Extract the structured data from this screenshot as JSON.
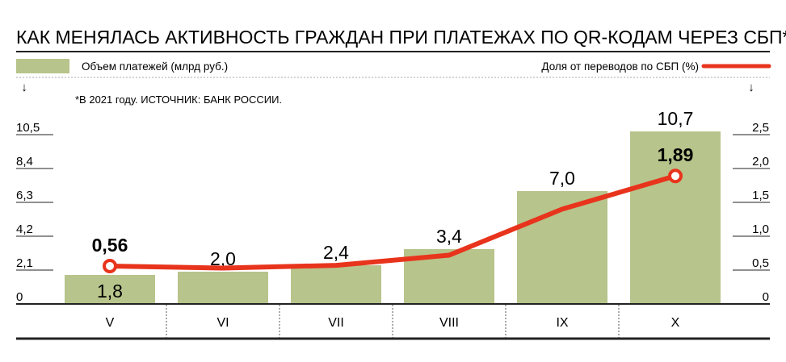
{
  "chart_data": {
    "type": "bar+line",
    "title": "КАК МЕНЯЛАСЬ АКТИВНОСТЬ ГРАЖДАН ПРИ ПЛАТЕЖАХ ПО QR-КОДАМ ЧЕРЕЗ СБП*",
    "note": "*В 2021 году.  ИСТОЧНИК: БАНК РОССИИ.",
    "legend_placement": "top",
    "categories": [
      "V",
      "VI",
      "VII",
      "VIII",
      "IX",
      "X"
    ],
    "bars": {
      "name": "Объем платежей (млрд руб.)",
      "color": "#b7c48b",
      "values": [
        1.8,
        2.0,
        2.4,
        3.4,
        7.0,
        10.7
      ],
      "labels": [
        "1,8",
        "2,0",
        "2,4",
        "3,4",
        "7,0",
        "10,7"
      ],
      "axis": "left"
    },
    "line": {
      "name": "Доля от переводов по СБП (%)",
      "color": "#e8341c",
      "values": [
        0.56,
        0.53,
        0.57,
        0.72,
        1.4,
        1.89
      ],
      "labels": [
        "0,56",
        "",
        "",
        "",
        "",
        "1,89"
      ],
      "axis": "right"
    },
    "left_axis": {
      "range": [
        0,
        12.6
      ],
      "ticks": [
        0,
        2.1,
        4.2,
        6.3,
        8.4,
        10.5
      ],
      "tick_labels": [
        "0",
        "2,1",
        "4,2",
        "6,3",
        "8,4",
        "10,5"
      ],
      "arrow": "↓"
    },
    "right_axis": {
      "range": [
        0,
        3.0
      ],
      "ticks": [
        0,
        0.5,
        1.0,
        1.5,
        2.0,
        2.5
      ],
      "tick_labels": [
        "0",
        "0,5",
        "1,0",
        "1,5",
        "2,0",
        "2,5"
      ],
      "arrow": "↓"
    },
    "grid": false
  }
}
